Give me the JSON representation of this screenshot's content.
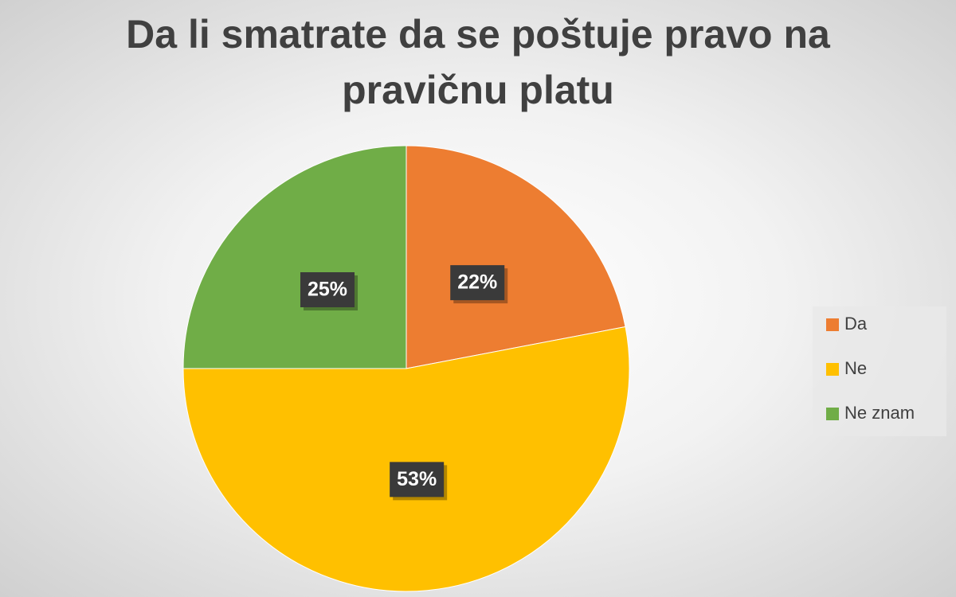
{
  "chart_data": {
    "type": "pie",
    "title": "Da li smatrate da se poštuje pravo na pravičnu platu",
    "categories": [
      "Da",
      "Ne",
      "Ne znam"
    ],
    "values": [
      22,
      53,
      25
    ],
    "value_labels": [
      "22%",
      "53%",
      "25%"
    ],
    "colors": [
      "#ed7d31",
      "#ffc000",
      "#70ad47"
    ],
    "legend": "right"
  }
}
